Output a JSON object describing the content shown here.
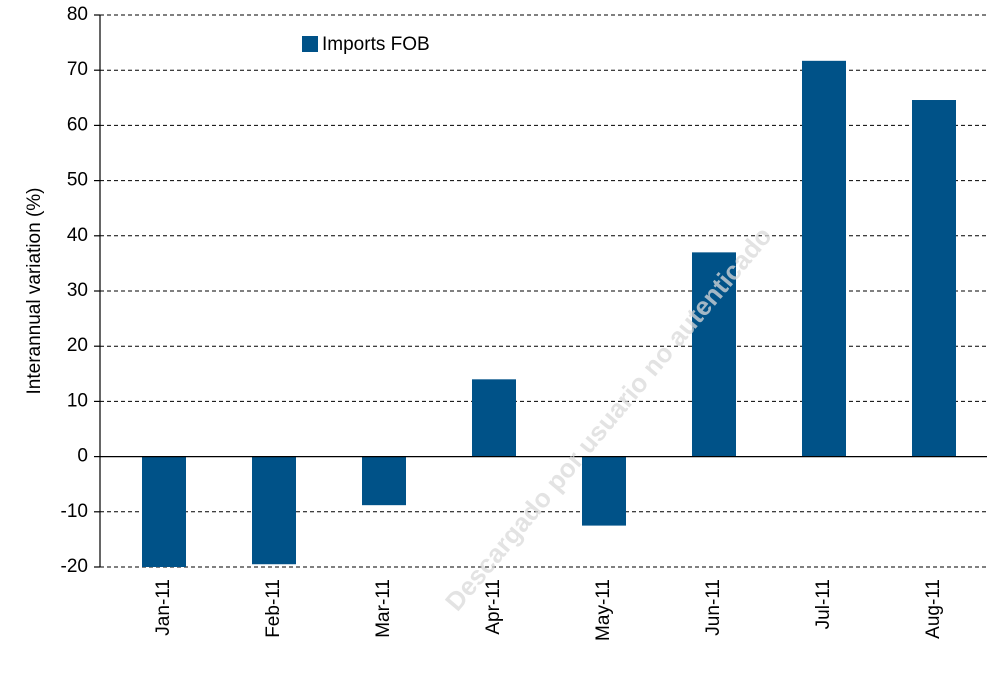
{
  "chart_data": {
    "type": "bar",
    "y_label": "Interannual variation (%)",
    "categories": [
      "Jan-11",
      "Feb-11",
      "Mar-11",
      "Apr-11",
      "May-11",
      "Jun-11",
      "Jul-11",
      "Aug-11"
    ],
    "series": [
      {
        "name": "Imports FOB",
        "color": "#005288",
        "values": [
          -20,
          -19.5,
          -8.8,
          14,
          -12.5,
          37,
          71.7,
          64.6
        ]
      }
    ],
    "ylim": [
      -20,
      80
    ],
    "yticks": [
      -20,
      -10,
      0,
      10,
      20,
      30,
      40,
      50,
      60,
      70,
      80
    ],
    "grid": true,
    "legend": "top-left",
    "watermark": "Descargado por usuario no autenticado"
  }
}
